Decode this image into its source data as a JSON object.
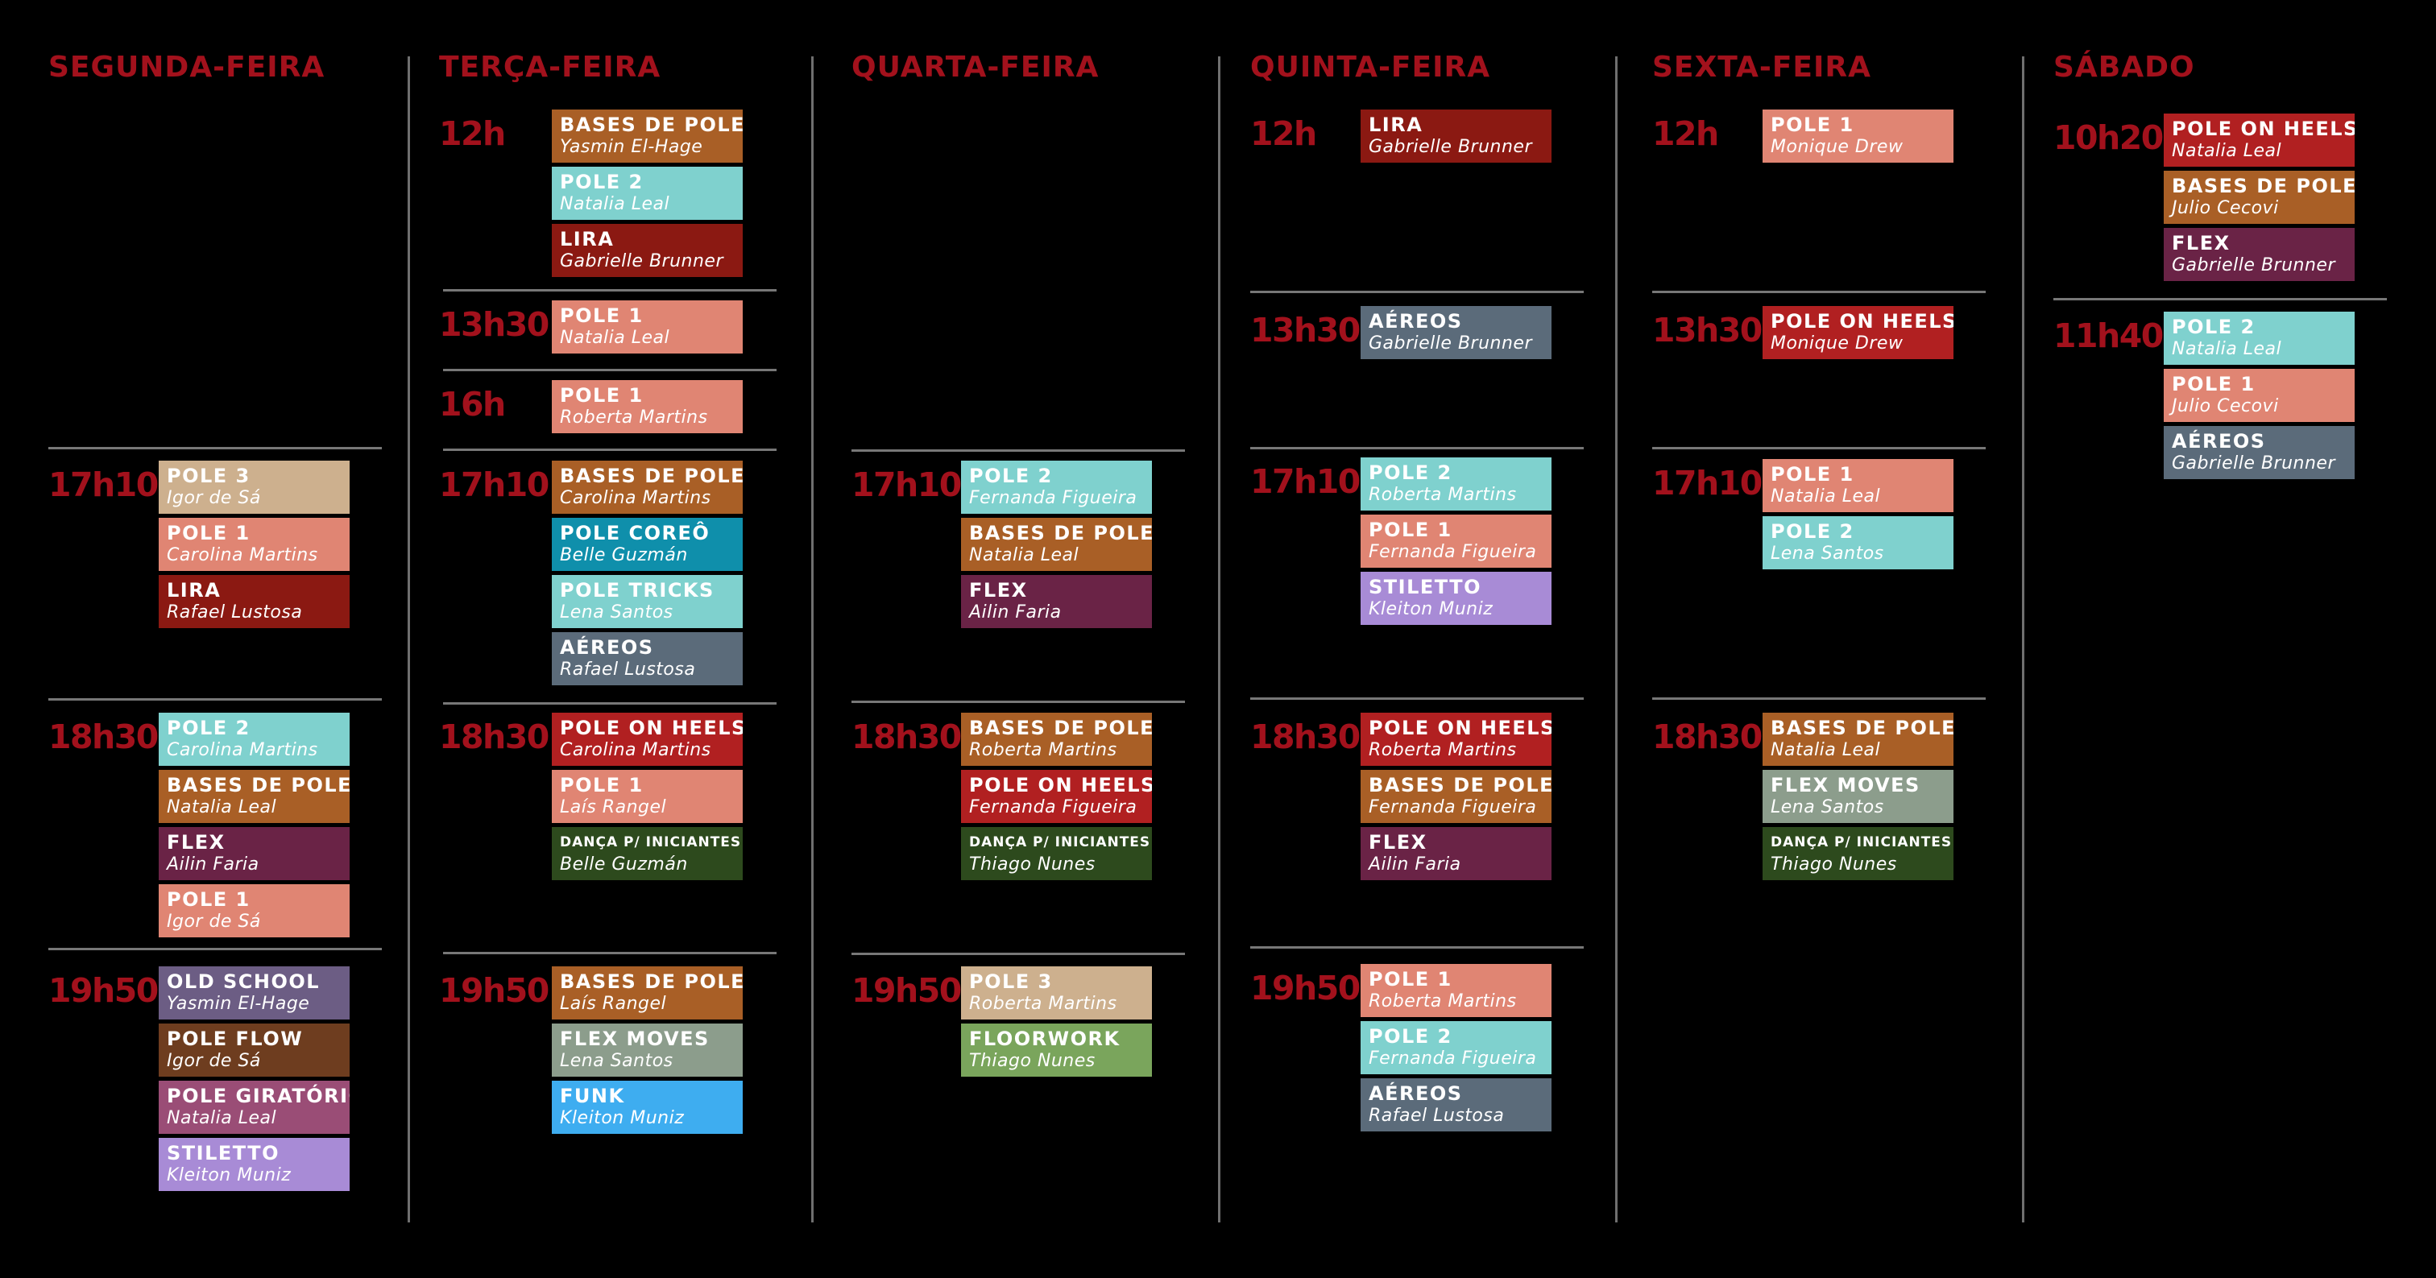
{
  "colors": {
    "background": "#000000",
    "day_title": "#a2111c",
    "time_label": "#a2111c",
    "divider": "#777777",
    "class_colors": {
      "POLE 1": "#e08573",
      "POLE 2": "#7fd1ce",
      "POLE 3": "#cdb08e",
      "LIRA": "#8b1912",
      "BASES DE POLE": "#a95f26",
      "AÉREOS": "#5b6b7a",
      "FLEX": "#6a2346",
      "POLE COREÔ": "#0f8fab",
      "POLE TRICKS": "#7fd1ce",
      "POLE ON HEELS": "#b12021",
      "DANÇA P/ INICIANTES": "#2d4a1d",
      "FLEX MOVES": "#8c9d8c",
      "FUNK": "#3eadf0",
      "FLOORWORK": "#7aa55c",
      "STILETTO": "#a88bd6",
      "OLD SCHOOL": "#6c5d84",
      "POLE FLOW": "#6e3d1f",
      "POLE GIRATÓRIO": "#9a4d76"
    }
  },
  "days": [
    {
      "name": "SEGUNDA-FEIRA",
      "slots": [
        {
          "time": "17h10",
          "classes": [
            {
              "name": "POLE 3",
              "instructor": "Igor de Sá"
            },
            {
              "name": "POLE 1",
              "instructor": "Carolina Martins"
            },
            {
              "name": "LIRA",
              "instructor": "Rafael Lustosa"
            }
          ]
        },
        {
          "time": "18h30",
          "classes": [
            {
              "name": "POLE 2",
              "instructor": "Carolina Martins"
            },
            {
              "name": "BASES DE POLE",
              "instructor": "Natalia Leal"
            },
            {
              "name": "FLEX",
              "instructor": "Ailin Faria"
            },
            {
              "name": "POLE 1",
              "instructor": "Igor de Sá"
            }
          ]
        },
        {
          "time": "19h50",
          "classes": [
            {
              "name": "OLD SCHOOL",
              "instructor": "Yasmin El-Hage"
            },
            {
              "name": "POLE FLOW",
              "instructor": "Igor de Sá"
            },
            {
              "name": "POLE GIRATÓRIO",
              "instructor": "Natalia Leal"
            },
            {
              "name": "STILETTO",
              "instructor": "Kleiton Muniz"
            }
          ]
        }
      ]
    },
    {
      "name": "TERÇA-FEIRA",
      "slots": [
        {
          "time": "12h",
          "classes": [
            {
              "name": "BASES DE POLE",
              "instructor": "Yasmin El-Hage"
            },
            {
              "name": "POLE 2",
              "instructor": "Natalia Leal"
            },
            {
              "name": "LIRA",
              "instructor": "Gabrielle Brunner"
            }
          ]
        },
        {
          "time": "13h30",
          "classes": [
            {
              "name": "POLE 1",
              "instructor": "Natalia Leal"
            }
          ]
        },
        {
          "time": "16h",
          "classes": [
            {
              "name": "POLE 1",
              "instructor": "Roberta Martins"
            }
          ]
        },
        {
          "time": "17h10",
          "classes": [
            {
              "name": "BASES DE POLE",
              "instructor": "Carolina Martins"
            },
            {
              "name": "POLE COREÔ",
              "instructor": "Belle Guzmán"
            },
            {
              "name": "POLE TRICKS",
              "instructor": "Lena Santos"
            },
            {
              "name": "AÉREOS",
              "instructor": "Rafael Lustosa"
            }
          ]
        },
        {
          "time": "18h30",
          "classes": [
            {
              "name": "POLE ON HEELS",
              "instructor": "Carolina Martins"
            },
            {
              "name": "POLE 1",
              "instructor": "Laís Rangel"
            },
            {
              "name": "DANÇA P/ INICIANTES",
              "instructor": "Belle Guzmán"
            }
          ]
        },
        {
          "time": "19h50",
          "classes": [
            {
              "name": "BASES DE POLE",
              "instructor": "Laís Rangel"
            },
            {
              "name": "FLEX MOVES",
              "instructor": "Lena Santos"
            },
            {
              "name": "FUNK",
              "instructor": "Kleiton Muniz"
            }
          ]
        }
      ]
    },
    {
      "name": "QUARTA-FEIRA",
      "slots": [
        {
          "time": "17h10",
          "classes": [
            {
              "name": "POLE 2",
              "instructor": "Fernanda Figueira"
            },
            {
              "name": "BASES DE POLE",
              "instructor": "Natalia Leal"
            },
            {
              "name": "FLEX",
              "instructor": "Ailin Faria"
            }
          ]
        },
        {
          "time": "18h30",
          "classes": [
            {
              "name": "BASES DE POLE",
              "instructor": "Roberta Martins"
            },
            {
              "name": "POLE ON HEELS",
              "instructor": "Fernanda Figueira"
            },
            {
              "name": "DANÇA P/ INICIANTES",
              "instructor": "Thiago Nunes"
            }
          ]
        },
        {
          "time": "19h50",
          "classes": [
            {
              "name": "POLE 3",
              "instructor": "Roberta Martins"
            },
            {
              "name": "FLOORWORK",
              "instructor": "Thiago Nunes"
            }
          ]
        }
      ]
    },
    {
      "name": "QUINTA-FEIRA",
      "slots": [
        {
          "time": "12h",
          "classes": [
            {
              "name": "LIRA",
              "instructor": "Gabrielle Brunner"
            }
          ]
        },
        {
          "time": "13h30",
          "classes": [
            {
              "name": "AÉREOS",
              "instructor": "Gabrielle Brunner"
            }
          ]
        },
        {
          "time": "17h10",
          "classes": [
            {
              "name": "POLE 2",
              "instructor": "Roberta Martins"
            },
            {
              "name": "POLE 1",
              "instructor": "Fernanda Figueira"
            },
            {
              "name": "STILETTO",
              "instructor": "Kleiton Muniz"
            }
          ]
        },
        {
          "time": "18h30",
          "classes": [
            {
              "name": "POLE ON HEELS",
              "instructor": "Roberta Martins"
            },
            {
              "name": "BASES DE POLE",
              "instructor": "Fernanda Figueira"
            },
            {
              "name": "FLEX",
              "instructor": "Ailin Faria"
            }
          ]
        },
        {
          "time": "19h50",
          "classes": [
            {
              "name": "POLE 1",
              "instructor": "Roberta Martins"
            },
            {
              "name": "POLE 2",
              "instructor": "Fernanda Figueira"
            },
            {
              "name": "AÉREOS",
              "instructor": "Rafael Lustosa"
            }
          ]
        }
      ]
    },
    {
      "name": "SEXTA-FEIRA",
      "slots": [
        {
          "time": "12h",
          "classes": [
            {
              "name": "POLE 1",
              "instructor": "Monique Drew"
            }
          ]
        },
        {
          "time": "13h30",
          "classes": [
            {
              "name": "POLE ON HEELS",
              "instructor": "Monique Drew"
            }
          ]
        },
        {
          "time": "17h10",
          "classes": [
            {
              "name": "POLE 1",
              "instructor": "Natalia Leal"
            },
            {
              "name": "POLE 2",
              "instructor": "Lena Santos"
            }
          ]
        },
        {
          "time": "18h30",
          "classes": [
            {
              "name": "BASES DE POLE",
              "instructor": "Natalia Leal"
            },
            {
              "name": "FLEX MOVES",
              "instructor": "Lena Santos"
            },
            {
              "name": "DANÇA P/ INICIANTES",
              "instructor": "Thiago Nunes"
            }
          ]
        }
      ]
    },
    {
      "name": "SÁBADO",
      "slots": [
        {
          "time": "10h20",
          "classes": [
            {
              "name": "POLE ON HEELS",
              "instructor": "Natalia Leal"
            },
            {
              "name": "BASES DE POLE",
              "instructor": "Julio Cecovi"
            },
            {
              "name": "FLEX",
              "instructor": "Gabrielle Brunner"
            }
          ]
        },
        {
          "time": "11h40",
          "classes": [
            {
              "name": "POLE 2",
              "instructor": "Natalia Leal"
            },
            {
              "name": "POLE 1",
              "instructor": "Julio Cecovi"
            },
            {
              "name": "AÉREOS",
              "instructor": "Gabrielle Brunner"
            }
          ]
        }
      ]
    }
  ]
}
